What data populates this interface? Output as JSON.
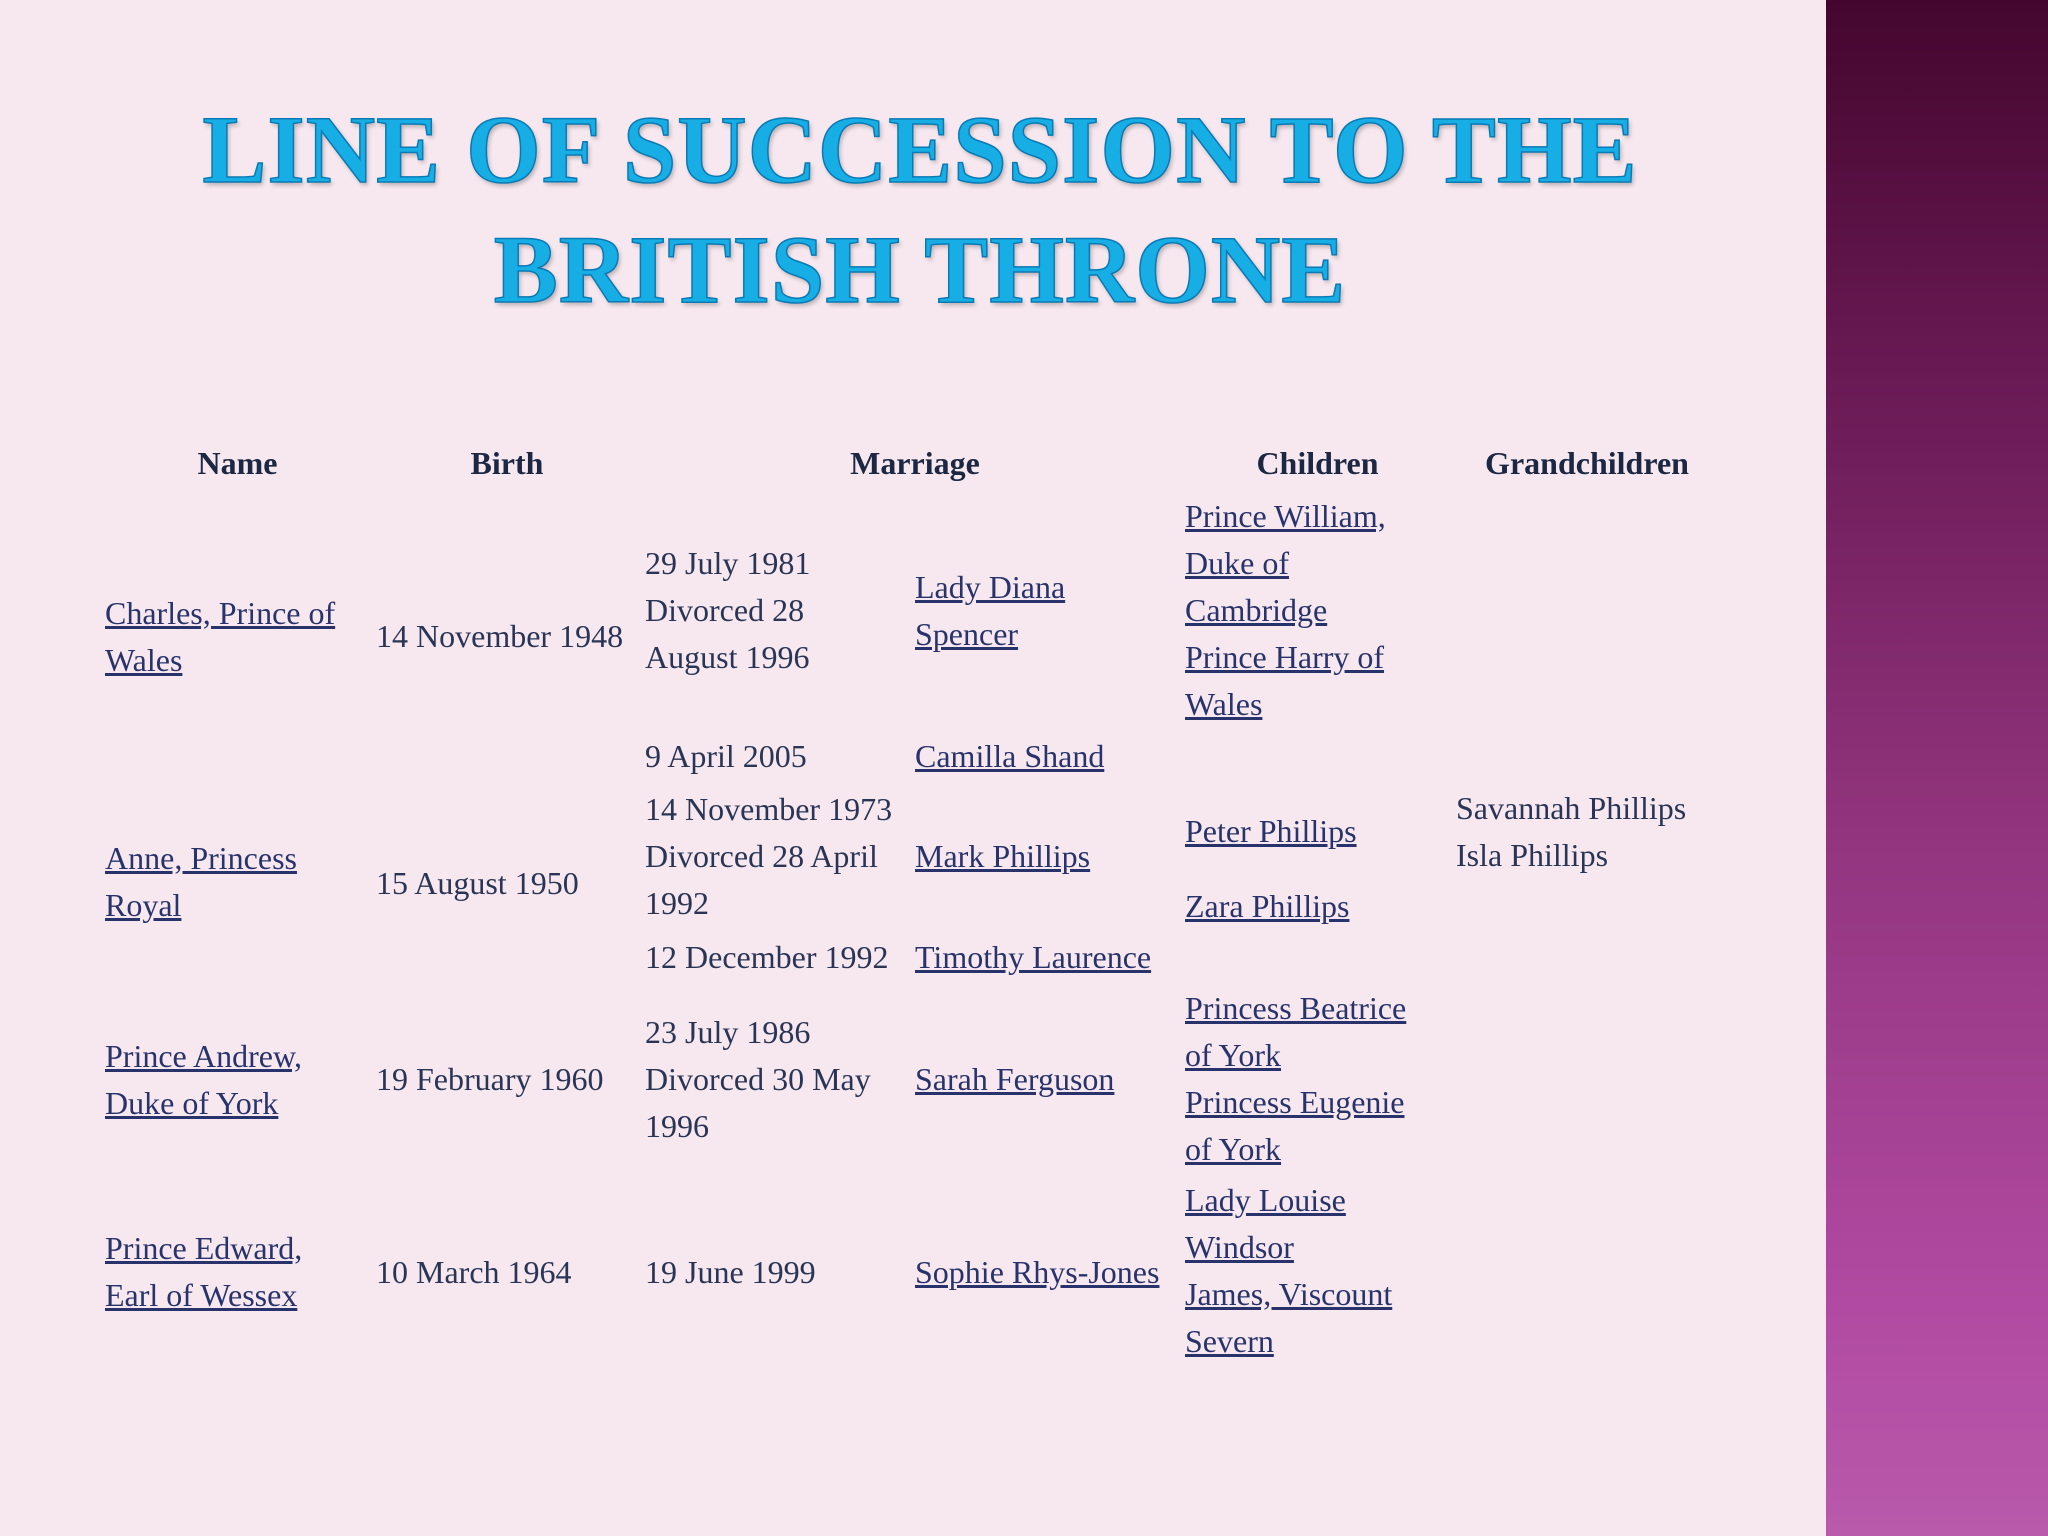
{
  "title": {
    "line1": "LINE OF SUCCESSION TO THE",
    "line2": "BRITISH THRONE"
  },
  "headers": {
    "name": "Name",
    "birth": "Birth",
    "marriage": "Marriage",
    "children": "Children",
    "grandchildren": "Grandchildren"
  },
  "rows": [
    {
      "name": [
        "Charles, Prince of",
        "Wales"
      ],
      "birth": "14 November 1948",
      "marriages": [
        {
          "date": [
            "29 July 1981",
            "Divorced 28",
            "August 1996"
          ],
          "spouse": [
            "Lady Diana",
            "Spencer"
          ]
        },
        {
          "date": [
            "9 April 2005"
          ],
          "spouse": [
            "Camilla Shand"
          ]
        }
      ],
      "children": [
        [
          "Prince William,",
          "Duke of",
          "Cambridge"
        ],
        [
          "Prince Harry of",
          "Wales"
        ]
      ],
      "grandchildren": []
    },
    {
      "name": [
        "Anne, Princess",
        "Royal"
      ],
      "birth": "15 August 1950",
      "marriages": [
        {
          "date": [
            "14 November 1973",
            "Divorced 28 April",
            "1992"
          ],
          "spouse": [
            "Mark Phillips"
          ]
        },
        {
          "date": [
            "12 December 1992"
          ],
          "spouse": [
            "Timothy Laurence"
          ]
        }
      ],
      "children": [
        [
          "Peter Phillips"
        ],
        [
          "Zara Phillips"
        ]
      ],
      "grandchildren": [
        "Savannah Phillips",
        "Isla Phillips"
      ]
    },
    {
      "name": [
        "Prince Andrew,",
        "Duke of York"
      ],
      "birth": "19 February 1960",
      "marriages": [
        {
          "date": [
            "23 July 1986",
            "Divorced 30 May",
            "1996"
          ],
          "spouse": [
            "Sarah Ferguson"
          ]
        }
      ],
      "children": [
        [
          "Princess Beatrice",
          "of York"
        ],
        [
          "Princess Eugenie",
          "of York"
        ]
      ],
      "grandchildren": []
    },
    {
      "name": [
        "Prince Edward,",
        "Earl of Wessex"
      ],
      "birth": "10 March 1964",
      "marriages": [
        {
          "date": [
            "19 June 1999"
          ],
          "spouse": [
            "Sophie Rhys-Jones"
          ]
        }
      ],
      "children": [
        [
          "Lady Louise",
          "Windsor"
        ],
        [
          "James, Viscount",
          "Severn"
        ]
      ],
      "grandchildren": []
    }
  ],
  "colors": {
    "background": "#f6e8ee",
    "title": "#17aee6",
    "band_top": "#44062e",
    "band_bottom": "#b95aab",
    "link": "#28336b"
  }
}
